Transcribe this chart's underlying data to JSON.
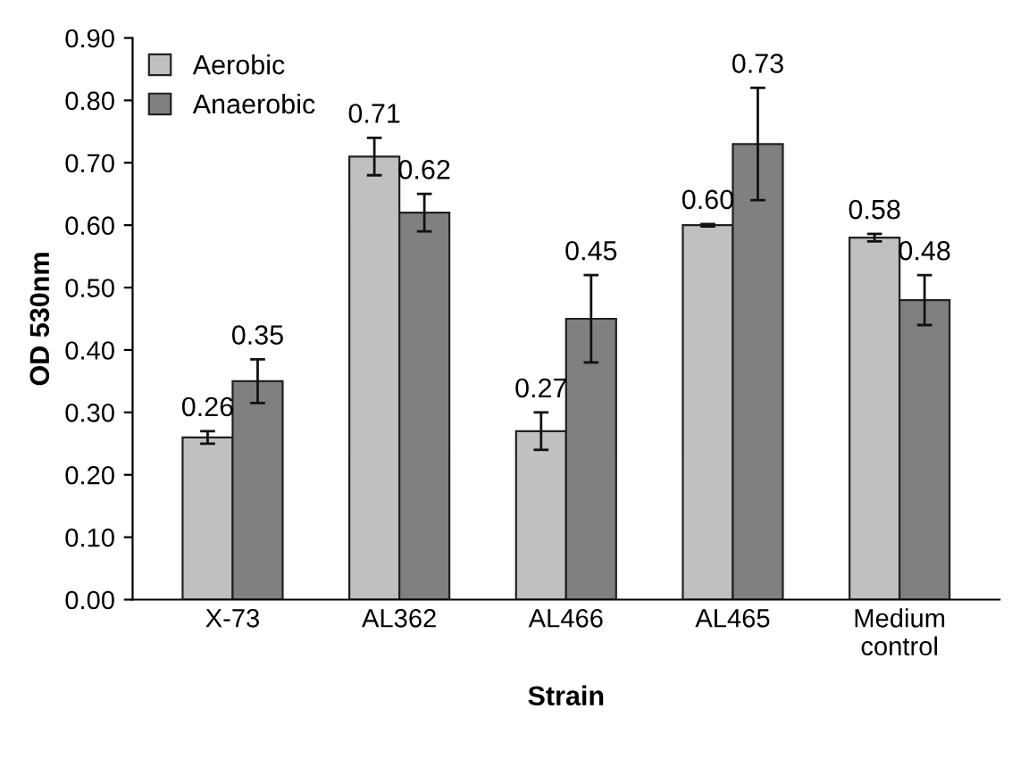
{
  "chart_data": {
    "type": "bar",
    "xlabel": "Strain",
    "ylabel": "OD 530nm",
    "categories": [
      "X-73",
      "AL362",
      "AL466",
      "AL465",
      "Medium\ncontrol"
    ],
    "series": [
      {
        "name": "Aerobic",
        "color": "#c0c0c0",
        "values": [
          0.26,
          0.71,
          0.27,
          0.6,
          0.58
        ],
        "errors": [
          0.01,
          0.03,
          0.03,
          0.002,
          0.006
        ],
        "value_labels": [
          "0.26",
          "0.71",
          "0.27",
          "0.60",
          "0.58"
        ]
      },
      {
        "name": "Anaerobic",
        "color": "#808080",
        "values": [
          0.35,
          0.62,
          0.45,
          0.73,
          0.48
        ],
        "errors": [
          0.035,
          0.03,
          0.07,
          0.09,
          0.04
        ],
        "value_labels": [
          "0.35",
          "0.62",
          "0.45",
          "0.73",
          "0.48"
        ]
      }
    ],
    "ylim": [
      0,
      0.9
    ],
    "yticks": [
      {
        "value": 0,
        "label": "0.00"
      },
      {
        "value": 0.1,
        "label": "0.10"
      },
      {
        "value": 0.2,
        "label": "0.20"
      },
      {
        "value": 0.3,
        "label": "0.30"
      },
      {
        "value": 0.4,
        "label": "0.40"
      },
      {
        "value": 0.5,
        "label": "0.50"
      },
      {
        "value": 0.6,
        "label": "0.60"
      },
      {
        "value": 0.7,
        "label": "0.70"
      },
      {
        "value": 0.8,
        "label": "0.80"
      },
      {
        "value": 0.9,
        "label": "0.90"
      }
    ],
    "grid": false,
    "legend": "top left"
  }
}
